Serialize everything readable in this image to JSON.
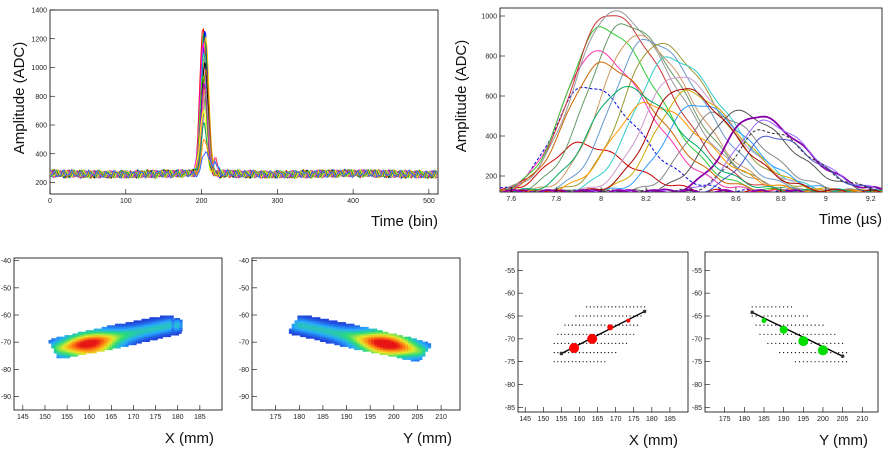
{
  "chart_data": [
    {
      "id": "waveforms_bin",
      "type": "line",
      "xlabel": "Time (bin)",
      "ylabel": "Amplitude (ADC)",
      "xlim": [
        0,
        512
      ],
      "ylim": [
        120,
        1400
      ],
      "xticks": [
        0,
        100,
        200,
        300,
        400,
        500
      ],
      "yticks": [
        200,
        400,
        600,
        800,
        1000,
        1200,
        1400
      ],
      "baseline": 260,
      "noise_amplitude": 30,
      "pulse_center_bin": 202,
      "pulse_peaks": [
        1290,
        1270,
        1240,
        1200,
        1150,
        1100,
        1050,
        1000,
        950,
        900,
        850,
        800,
        700,
        600,
        500,
        420
      ],
      "series_colors": [
        "#ff0000",
        "#00cc00",
        "#0000ff",
        "#ffcc00",
        "#ff00ff",
        "#00cccc",
        "#000000",
        "#cc6600",
        "#66cc00",
        "#9900cc",
        "#ff6699",
        "#888888",
        "#ffff00",
        "#009966",
        "#ff9900",
        "#3366ff"
      ]
    },
    {
      "id": "waveforms_us",
      "type": "line",
      "xlabel": "Time (µs)",
      "ylabel": "Amplitude (ADC)",
      "xlim": [
        7.55,
        9.25
      ],
      "ylim": [
        120,
        1040
      ],
      "xticks": [
        7.6,
        7.8,
        8,
        8.2,
        8.4,
        8.6,
        8.8,
        9,
        9.2
      ],
      "yticks": [
        200,
        400,
        600,
        800,
        1000
      ],
      "series": [
        {
          "center": 7.9,
          "peak": 360,
          "width": 0.17,
          "color": "#cc0000"
        },
        {
          "center": 7.93,
          "peak": 650,
          "width": 0.18,
          "color": "#0000dd",
          "dash": true
        },
        {
          "center": 7.97,
          "peak": 820,
          "width": 0.19,
          "color": "#ff33aa"
        },
        {
          "center": 8.0,
          "peak": 940,
          "width": 0.2,
          "color": "#33cc33"
        },
        {
          "center": 8.03,
          "peak": 1010,
          "width": 0.21,
          "color": "#cc3333"
        },
        {
          "center": 8.05,
          "peak": 1020,
          "width": 0.22,
          "color": "#999999"
        },
        {
          "center": 8.1,
          "peak": 960,
          "width": 0.21,
          "color": "#669966"
        },
        {
          "center": 8.15,
          "peak": 900,
          "width": 0.2,
          "color": "#cc9966"
        },
        {
          "center": 8.2,
          "peak": 880,
          "width": 0.2,
          "color": "#6699cc"
        },
        {
          "center": 8.25,
          "peak": 860,
          "width": 0.2,
          "color": "#999933"
        },
        {
          "center": 8.3,
          "peak": 790,
          "width": 0.2,
          "color": "#33cccc"
        },
        {
          "center": 8.33,
          "peak": 700,
          "width": 0.19,
          "color": "#cc99cc"
        },
        {
          "center": 8.38,
          "peak": 620,
          "width": 0.18,
          "color": "#ccaa00"
        },
        {
          "center": 8.42,
          "peak": 560,
          "width": 0.18,
          "color": "#3399ff"
        },
        {
          "center": 8.5,
          "peak": 510,
          "width": 0.17,
          "color": "#888888"
        },
        {
          "center": 8.6,
          "peak": 520,
          "width": 0.18,
          "color": "#555555"
        },
        {
          "center": 8.68,
          "peak": 500,
          "width": 0.17,
          "color": "#8800aa"
        },
        {
          "center": 8.72,
          "peak": 470,
          "width": 0.16,
          "color": "#9966ff"
        },
        {
          "center": 8.75,
          "peak": 400,
          "width": 0.15,
          "color": "#4455cc"
        },
        {
          "center": 8.72,
          "peak": 430,
          "width": 0.16,
          "color": "#333333",
          "dash": true
        },
        {
          "center": 8.2,
          "peak": 560,
          "width": 0.2,
          "color": "#ff9900"
        },
        {
          "center": 8.0,
          "peak": 760,
          "width": 0.2,
          "color": "#cc6600"
        },
        {
          "center": 8.1,
          "peak": 640,
          "width": 0.2,
          "color": "#00aa66"
        },
        {
          "center": 8.35,
          "peak": 640,
          "width": 0.18,
          "color": "#aa0000"
        },
        {
          "center": 9.08,
          "peak": 100,
          "width": 0.12,
          "color": "#8800aa"
        }
      ]
    },
    {
      "id": "heatmap_x",
      "type": "heatmap",
      "xlabel": "X (mm)",
      "xlim": [
        143,
        190
      ],
      "ylim": [
        -95,
        -39
      ],
      "xticks": [
        145,
        150,
        155,
        160,
        165,
        170,
        175,
        180,
        185
      ],
      "yticks": [
        -40,
        -50,
        -60,
        -70,
        -80,
        -90
      ],
      "track": {
        "x_start": 153,
        "y_start": -72.5,
        "x_end": 178,
        "y_end": -64,
        "hot_x": 160,
        "hot_y": -72
      },
      "blob": {
        "x": 179.5,
        "y": -64
      }
    },
    {
      "id": "heatmap_y",
      "type": "heatmap",
      "xlabel": "Y (mm)",
      "xlim": [
        170,
        214
      ],
      "ylim": [
        -95,
        -39
      ],
      "xticks": [
        175,
        180,
        185,
        190,
        195,
        200,
        205,
        210
      ],
      "yticks": [
        -40,
        -50,
        -60,
        -70,
        -80,
        -90
      ],
      "track": {
        "x_start": 180,
        "y_start": -64,
        "x_end": 205,
        "y_end": -73.5,
        "hot_x": 198,
        "hot_y": -71
      }
    },
    {
      "id": "hits_x",
      "type": "scatter",
      "xlabel": "X (mm)",
      "xlim": [
        143,
        190
      ],
      "ylim": [
        -86,
        -51
      ],
      "xticks": [
        145,
        150,
        155,
        160,
        165,
        170,
        175,
        180,
        185
      ],
      "yticks": [
        -55,
        -60,
        -65,
        -70,
        -75,
        -80,
        -85
      ],
      "color": "#ff0000",
      "fit_line": [
        [
          155,
          -73.2
        ],
        [
          178,
          -64
        ]
      ],
      "points": [
        {
          "x": 158.5,
          "y": -72,
          "size": 5
        },
        {
          "x": 163.5,
          "y": -70,
          "size": 5
        },
        {
          "x": 168.5,
          "y": -67.5,
          "size": 3
        },
        {
          "x": 173.5,
          "y": -66,
          "size": 2
        }
      ]
    },
    {
      "id": "hits_y",
      "type": "scatter",
      "xlabel": "Y (mm)",
      "xlim": [
        170,
        214
      ],
      "ylim": [
        -86,
        -51
      ],
      "xticks": [
        175,
        180,
        185,
        190,
        195,
        200,
        205,
        210
      ],
      "yticks": [
        -55,
        -60,
        -65,
        -70,
        -75,
        -80,
        -85
      ],
      "color": "#00dd00",
      "fit_line": [
        [
          182,
          -64.2
        ],
        [
          205,
          -73.8
        ]
      ],
      "points": [
        {
          "x": 185,
          "y": -66,
          "size": 2.5
        },
        {
          "x": 190,
          "y": -68,
          "size": 4
        },
        {
          "x": 195,
          "y": -70.5,
          "size": 5
        },
        {
          "x": 200,
          "y": -72.5,
          "size": 5
        }
      ]
    }
  ]
}
